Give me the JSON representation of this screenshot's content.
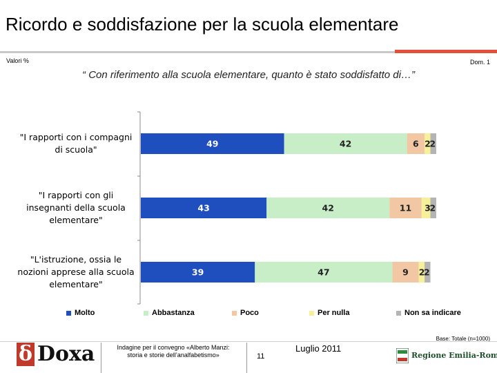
{
  "title": "Ricordo e soddisfazione per la scuola elementare",
  "valori_label": "Valori %",
  "dom_label": "Dom. 1",
  "question": "“ Con riferimento alla scuola elementare, quanto è stato soddisfatto di…”",
  "chart_data": {
    "type": "bar",
    "orientation": "horizontal",
    "stacked": true,
    "categories": [
      [
        "\"I rapporti con i compagni",
        "di scuola\""
      ],
      [
        "\"I rapporti con gli",
        "insegnanti della scuola",
        "elementare\""
      ],
      [
        "\"L'istruzione, ossia le",
        "nozioni apprese alla scuola",
        "elementare\""
      ]
    ],
    "series": [
      {
        "name": "Molto",
        "color": "#1f4fbf",
        "values": [
          49,
          43,
          39
        ],
        "labels": [
          "49",
          "43",
          "39"
        ]
      },
      {
        "name": "Abbastanza",
        "color": "#c8eec8",
        "values": [
          42,
          42,
          47
        ],
        "labels": [
          "42",
          "42",
          "47"
        ]
      },
      {
        "name": "Poco",
        "color": "#f2c8a4",
        "values": [
          6,
          11,
          9
        ],
        "labels": [
          "6",
          "11",
          "9"
        ]
      },
      {
        "name": "Per nulla",
        "color": "#f7f09a",
        "values": [
          2,
          3,
          2
        ],
        "labels": [
          "2",
          "3",
          "2"
        ]
      },
      {
        "name": "Non sa indicare",
        "color": "#b4b4b4",
        "values": [
          2,
          2,
          2
        ],
        "labels": [
          "2",
          "2",
          "2"
        ]
      }
    ],
    "xlim": [
      0,
      101
    ],
    "legend_position": "bottom"
  },
  "base_note": "Base: Totale (n=1000)",
  "footer": {
    "logo": "δDoxa",
    "line1": "Indagine per il convegno «Alberto Manzi:",
    "line2": "storia e storie dell’analfabetismo»",
    "page": "11",
    "date": "Luglio 2011",
    "region": "Regione Emilia-Romagna"
  }
}
